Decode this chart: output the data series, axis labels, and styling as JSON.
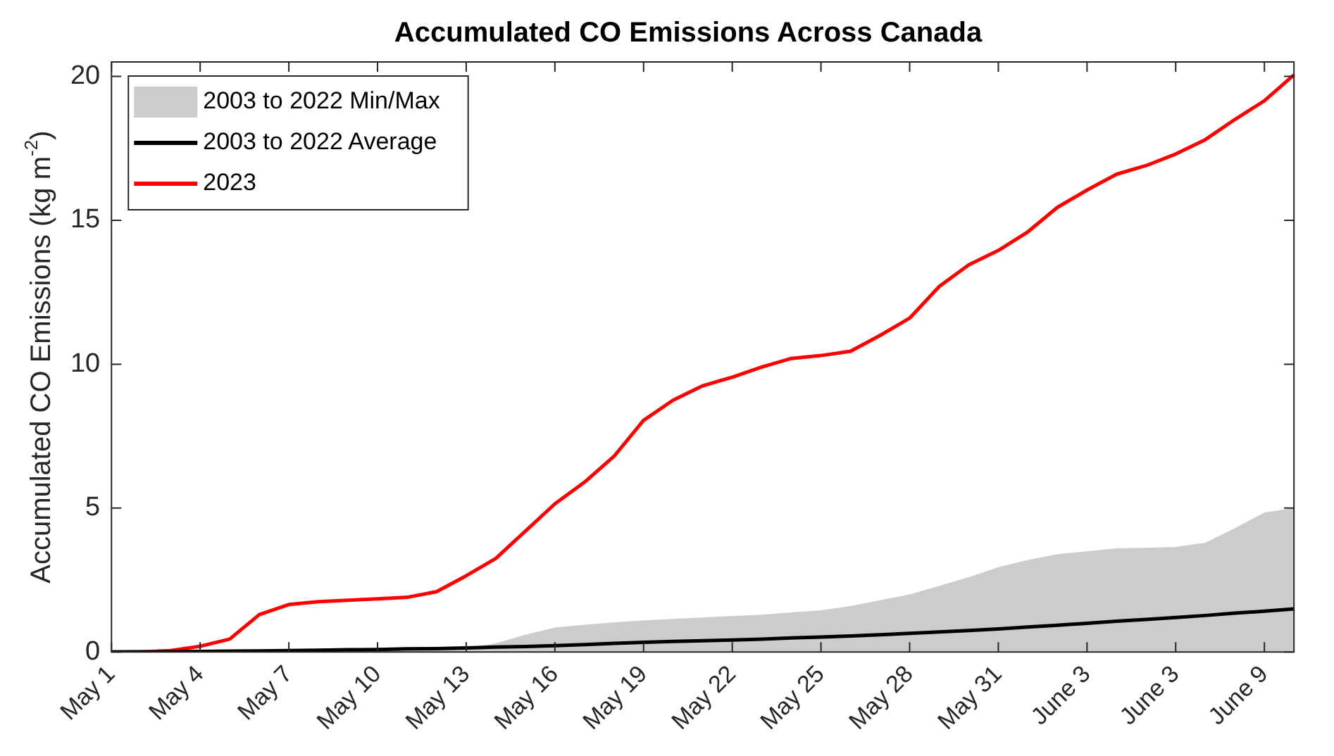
{
  "chart_data": {
    "type": "line",
    "title": "Accumulated CO Emissions Across Canada",
    "ylabel": "Accumulated CO Emissions (kg m$^{-2}$)",
    "categories": [
      "May 1",
      null,
      null,
      "May 4",
      null,
      null,
      "May 7",
      null,
      null,
      "May 10",
      null,
      null,
      "May 13",
      null,
      null,
      "May 16",
      null,
      null,
      "May 19",
      null,
      null,
      "May 22",
      null,
      null,
      "May 25",
      null,
      null,
      "May 28",
      null,
      null,
      "May 31",
      null,
      null,
      "June 3",
      null,
      null,
      "June 3",
      null,
      null,
      "June 9",
      null
    ],
    "ylim": [
      0,
      20.5
    ],
    "yticks": [
      0,
      5,
      10,
      15,
      20
    ],
    "legend": "top left",
    "grid": false,
    "marker": "none",
    "line_style": "solid",
    "series": [
      {
        "name": "2003 to 2022 Min/Max",
        "type": "area",
        "color": "#cccccc",
        "values": [
          0.02,
          0.03,
          0.04,
          0.05,
          0.06,
          0.07,
          0.08,
          0.09,
          0.09,
          0.1,
          0.12,
          0.13,
          0.15,
          0.3,
          0.6,
          0.85,
          0.95,
          1.03,
          1.1,
          1.15,
          1.2,
          1.25,
          1.3,
          1.38,
          1.45,
          1.6,
          1.8,
          2.0,
          2.3,
          2.6,
          2.95,
          3.2,
          3.4,
          3.5,
          3.6,
          3.62,
          3.65,
          3.8,
          4.3,
          4.85,
          5.0
        ]
      },
      {
        "name": "2003 to 2022 Average",
        "type": "line",
        "color": "#000000",
        "values": [
          0,
          0.01,
          0.01,
          0.02,
          0.03,
          0.04,
          0.05,
          0.06,
          0.08,
          0.09,
          0.11,
          0.12,
          0.14,
          0.17,
          0.19,
          0.22,
          0.26,
          0.3,
          0.34,
          0.37,
          0.39,
          0.42,
          0.45,
          0.49,
          0.52,
          0.56,
          0.6,
          0.65,
          0.7,
          0.75,
          0.8,
          0.87,
          0.93,
          1.0,
          1.07,
          1.13,
          1.2,
          1.27,
          1.35,
          1.42,
          1.5
        ]
      },
      {
        "name": "2023",
        "type": "line",
        "color": "#ff0000",
        "values": [
          0,
          0,
          0.05,
          0.2,
          0.45,
          1.3,
          1.65,
          1.75,
          1.8,
          1.85,
          1.9,
          2.1,
          2.65,
          3.25,
          4.2,
          5.15,
          5.9,
          6.8,
          8.05,
          8.75,
          9.25,
          9.55,
          9.9,
          10.2,
          10.3,
          10.45,
          11.0,
          11.6,
          12.7,
          13.45,
          13.95,
          14.6,
          15.45,
          16.05,
          16.6,
          16.9,
          17.3,
          17.8,
          18.5,
          19.15,
          20.05
        ]
      }
    ]
  }
}
